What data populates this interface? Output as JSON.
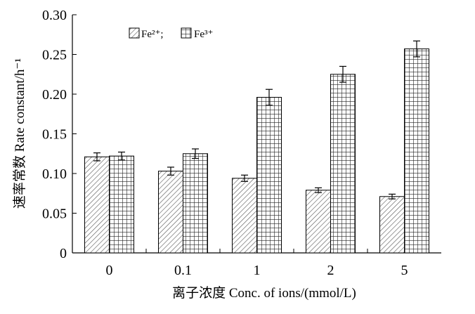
{
  "chart_data": {
    "type": "bar",
    "categories": [
      "0",
      "0.1",
      "1",
      "2",
      "5"
    ],
    "series": [
      {
        "name": "Fe²⁺",
        "pattern": "diagonal-hatch",
        "values": [
          0.121,
          0.103,
          0.094,
          0.079,
          0.071
        ],
        "errors": [
          0.005,
          0.005,
          0.004,
          0.003,
          0.003
        ]
      },
      {
        "name": "Fe³⁺",
        "pattern": "grid",
        "values": [
          0.122,
          0.125,
          0.196,
          0.225,
          0.257
        ],
        "errors": [
          0.005,
          0.006,
          0.01,
          0.01,
          0.01
        ]
      }
    ],
    "legend_text": [
      "Fe²⁺;",
      "Fe³⁺"
    ],
    "legend_position": "top-left",
    "ylim": [
      0,
      0.3
    ],
    "yticks": [
      "0",
      "0.05",
      "0.10",
      "0.15",
      "0.20",
      "0.25",
      "0.30"
    ],
    "ylabel": "速率常数 Rate constant/h⁻¹",
    "xlabel": "离子浓度  Conc. of ions/(mmol/L)",
    "grid": false
  }
}
